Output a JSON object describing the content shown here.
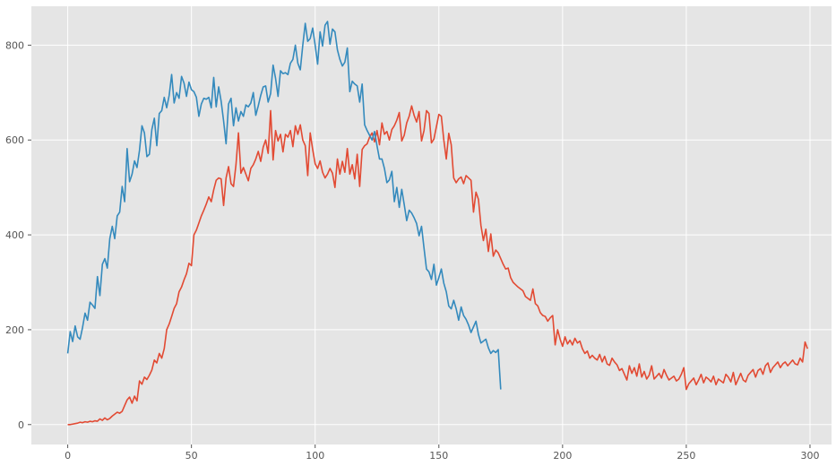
{
  "chart_data": {
    "type": "line",
    "title": "",
    "xlabel": "",
    "ylabel": "",
    "xlim": [
      -14.7,
      308.7
    ],
    "ylim": [
      -42,
      882
    ],
    "x_ticks": [
      0,
      50,
      100,
      150,
      200,
      250,
      300
    ],
    "y_ticks": [
      0,
      200,
      400,
      600,
      800
    ],
    "x_tick_labels": [
      "0",
      "50",
      "100",
      "150",
      "200",
      "250",
      "300"
    ],
    "y_tick_labels": [
      "0",
      "200",
      "400",
      "600",
      "800"
    ],
    "grid": true,
    "legend": "none",
    "background": "#E5E5E5",
    "series": [
      {
        "color": "#E24A33",
        "x_start": 0,
        "x_step": 1,
        "values": [
          0,
          0,
          1,
          2,
          3,
          5,
          4,
          6,
          5,
          7,
          6,
          8,
          7,
          12,
          9,
          14,
          10,
          13,
          18,
          22,
          26,
          24,
          28,
          40,
          52,
          58,
          45,
          60,
          50,
          92,
          85,
          100,
          95,
          104,
          115,
          136,
          130,
          150,
          140,
          160,
          200,
          212,
          228,
          245,
          255,
          280,
          290,
          305,
          318,
          340,
          335,
          400,
          410,
          425,
          440,
          452,
          465,
          480,
          470,
          495,
          515,
          520,
          518,
          462,
          520,
          544,
          508,
          502,
          548,
          615,
          530,
          542,
          528,
          514,
          540,
          548,
          560,
          576,
          555,
          585,
          600,
          572,
          662,
          558,
          620,
          598,
          612,
          575,
          612,
          606,
          620,
          586,
          630,
          612,
          632,
          600,
          588,
          525,
          615,
          580,
          550,
          540,
          556,
          532,
          520,
          528,
          540,
          530,
          500,
          560,
          528,
          555,
          532,
          582,
          528,
          548,
          518,
          570,
          502,
          580,
          588,
          592,
          606,
          615,
          596,
          620,
          590,
          636,
          612,
          618,
          600,
          622,
          630,
          642,
          658,
          598,
          610,
          636,
          650,
          672,
          652,
          638,
          660,
          598,
          620,
          662,
          656,
          594,
          602,
          628,
          654,
          650,
          600,
          560,
          614,
          590,
          520,
          510,
          518,
          522,
          508,
          525,
          520,
          515,
          448,
          490,
          475,
          420,
          388,
          412,
          365,
          402,
          355,
          368,
          362,
          350,
          338,
          328,
          330,
          310,
          300,
          295,
          290,
          286,
          282,
          270,
          266,
          262,
          286,
          255,
          250,
          236,
          230,
          228,
          218,
          225,
          230,
          168,
          200,
          180,
          165,
          185,
          170,
          178,
          168,
          182,
          172,
          176,
          160,
          150,
          155,
          140,
          146,
          140,
          136,
          148,
          132,
          144,
          128,
          125,
          140,
          132,
          126,
          114,
          118,
          106,
          94,
          124,
          108,
          120,
          102,
          128,
          100,
          112,
          96,
          104,
          124,
          96,
          102,
          108,
          98,
          116,
          104,
          94,
          98,
          102,
          92,
          96,
          106,
          120,
          74,
          86,
          92,
          98,
          84,
          94,
          106,
          88,
          100,
          96,
          90,
          102,
          84,
          96,
          92,
          88,
          106,
          100,
          90,
          110,
          84,
          96,
          108,
          94,
          90,
          104,
          110,
          116,
          100,
          114,
          118,
          106,
          124,
          130,
          110,
          120,
          126,
          132,
          120,
          128,
          132,
          124,
          130,
          136,
          128,
          126,
          140,
          132,
          174,
          160
        ]
      },
      {
        "color": "#348ABD",
        "x_start": 0,
        "x_step": 1,
        "values": [
          150,
          196,
          175,
          208,
          185,
          180,
          205,
          235,
          220,
          258,
          252,
          245,
          312,
          272,
          338,
          350,
          330,
          392,
          418,
          392,
          440,
          448,
          502,
          470,
          582,
          512,
          528,
          556,
          542,
          578,
          630,
          615,
          565,
          570,
          622,
          646,
          588,
          656,
          662,
          690,
          668,
          694,
          738,
          678,
          700,
          688,
          734,
          720,
          692,
          722,
          706,
          702,
          690,
          650,
          676,
          688,
          686,
          690,
          668,
          732,
          670,
          712,
          682,
          640,
          592,
          676,
          688,
          630,
          668,
          640,
          660,
          650,
          674,
          670,
          678,
          700,
          652,
          672,
          694,
          712,
          714,
          680,
          698,
          758,
          730,
          692,
          746,
          740,
          742,
          738,
          762,
          770,
          800,
          762,
          748,
          800,
          846,
          808,
          814,
          836,
          800,
          760,
          828,
          798,
          842,
          850,
          802,
          834,
          828,
          790,
          770,
          756,
          764,
          794,
          702,
          724,
          718,
          714,
          680,
          718,
          632,
          620,
          610,
          600,
          618,
          588,
          560,
          560,
          540,
          510,
          516,
          534,
          470,
          500,
          458,
          496,
          464,
          430,
          452,
          446,
          436,
          424,
          398,
          418,
          372,
          328,
          322,
          306,
          338,
          294,
          310,
          328,
          298,
          280,
          250,
          244,
          262,
          244,
          220,
          248,
          230,
          222,
          210,
          194,
          206,
          218,
          190,
          172,
          176,
          180,
          162,
          150,
          156,
          152,
          158,
          74
        ]
      }
    ]
  }
}
